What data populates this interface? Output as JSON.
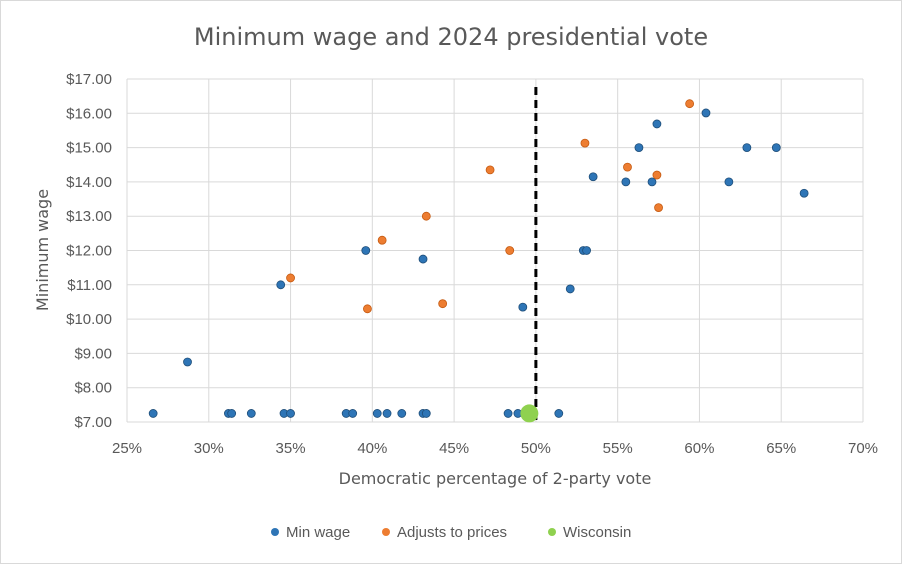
{
  "chart_data": {
    "type": "scatter",
    "title": "Minimum wage and 2024 presidential vote",
    "xlabel": "Democratic percentage of 2-party vote",
    "ylabel": "Minimum wage",
    "xlim": [
      25,
      70
    ],
    "ylim": [
      7,
      17
    ],
    "x_ticks": [
      "25%",
      "30%",
      "35%",
      "40%",
      "45%",
      "50%",
      "55%",
      "60%",
      "65%",
      "70%"
    ],
    "y_ticks": [
      "$7.00",
      "$8.00",
      "$9.00",
      "$10.00",
      "$11.00",
      "$12.00",
      "$13.00",
      "$14.00",
      "$15.00",
      "$16.00",
      "$17.00"
    ],
    "grid": true,
    "legend_position": "bottom",
    "reference_line": {
      "x": 50,
      "style": "dashed"
    },
    "series": [
      {
        "name": "Min wage",
        "color": "#2e75b6",
        "points": [
          [
            26.6,
            7.25
          ],
          [
            28.7,
            8.75
          ],
          [
            31.2,
            7.25
          ],
          [
            31.4,
            7.25
          ],
          [
            32.6,
            7.25
          ],
          [
            34.4,
            11.0
          ],
          [
            34.6,
            7.25
          ],
          [
            35.0,
            7.25
          ],
          [
            38.4,
            7.25
          ],
          [
            38.8,
            7.25
          ],
          [
            39.6,
            12.0
          ],
          [
            40.3,
            7.25
          ],
          [
            40.9,
            7.25
          ],
          [
            41.8,
            7.25
          ],
          [
            43.1,
            7.25
          ],
          [
            43.1,
            11.75
          ],
          [
            43.3,
            7.25
          ],
          [
            48.3,
            7.25
          ],
          [
            48.9,
            7.25
          ],
          [
            49.2,
            10.35
          ],
          [
            51.4,
            7.25
          ],
          [
            52.1,
            10.88
          ],
          [
            52.9,
            12.0
          ],
          [
            53.1,
            12.0
          ],
          [
            53.5,
            14.15
          ],
          [
            55.5,
            14.0
          ],
          [
            56.3,
            15.0
          ],
          [
            57.1,
            14.0
          ],
          [
            57.4,
            15.69
          ],
          [
            60.4,
            16.01
          ],
          [
            61.8,
            14.0
          ],
          [
            62.9,
            15.0
          ],
          [
            64.7,
            15.0
          ],
          [
            66.4,
            13.67
          ]
        ]
      },
      {
        "name": "Adjusts to prices",
        "color": "#ed7d31",
        "points": [
          [
            35.0,
            11.2
          ],
          [
            39.7,
            10.3
          ],
          [
            40.6,
            12.3
          ],
          [
            43.3,
            13.0
          ],
          [
            44.3,
            10.45
          ],
          [
            47.2,
            14.35
          ],
          [
            48.4,
            12.0
          ],
          [
            53.0,
            15.13
          ],
          [
            55.6,
            14.43
          ],
          [
            57.4,
            14.2
          ],
          [
            57.5,
            13.25
          ],
          [
            59.4,
            16.28
          ]
        ]
      },
      {
        "name": "Wisconsin",
        "color": "#8fd14f",
        "points": [
          [
            49.6,
            7.25
          ]
        ]
      }
    ]
  }
}
